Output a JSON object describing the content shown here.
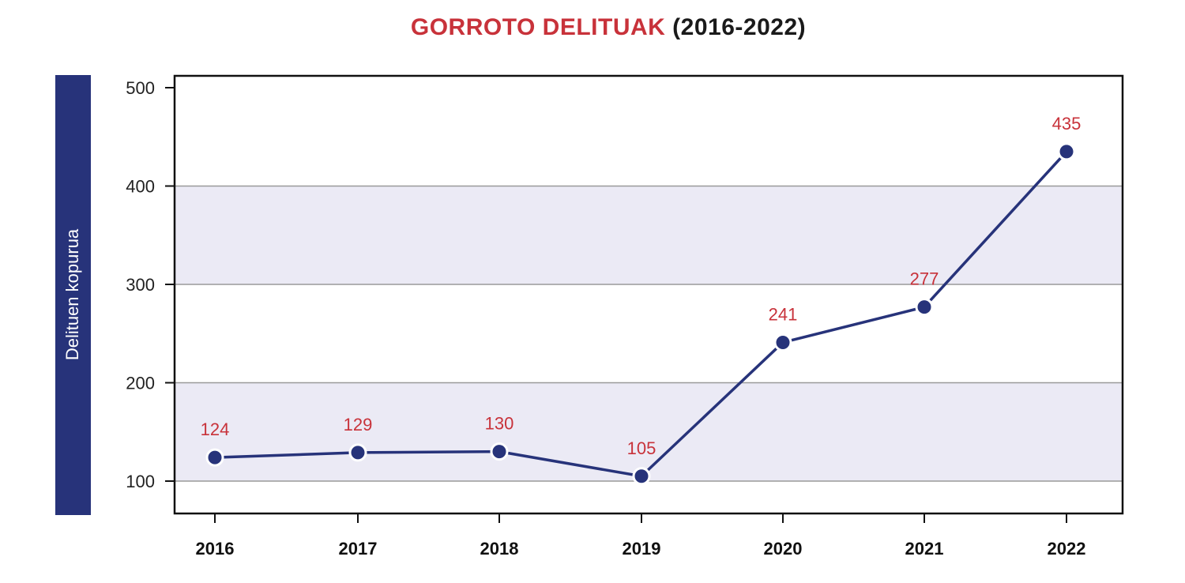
{
  "chart_data": {
    "type": "line",
    "title": "GORROTO DELITUAK",
    "subtitle": "(2016-2022)",
    "ylabel": "Delituen kopurua",
    "xlabel": "",
    "categories": [
      "2016",
      "2017",
      "2018",
      "2019",
      "2020",
      "2021",
      "2022"
    ],
    "series": [
      {
        "values": [
          124,
          129,
          130,
          105,
          241,
          277,
          435
        ]
      }
    ],
    "data_labels": [
      "124",
      "129",
      "130",
      "105",
      "241",
      "277",
      "435"
    ],
    "yticks": [
      "100",
      "200",
      "300",
      "400",
      "500"
    ],
    "ylim": [
      100,
      500
    ],
    "grid": true,
    "colors": {
      "line": "#27337a",
      "marker": "#27337a",
      "label": "#c8323a",
      "band": "#ebeaf5",
      "axis_bar": "#27337a"
    }
  }
}
